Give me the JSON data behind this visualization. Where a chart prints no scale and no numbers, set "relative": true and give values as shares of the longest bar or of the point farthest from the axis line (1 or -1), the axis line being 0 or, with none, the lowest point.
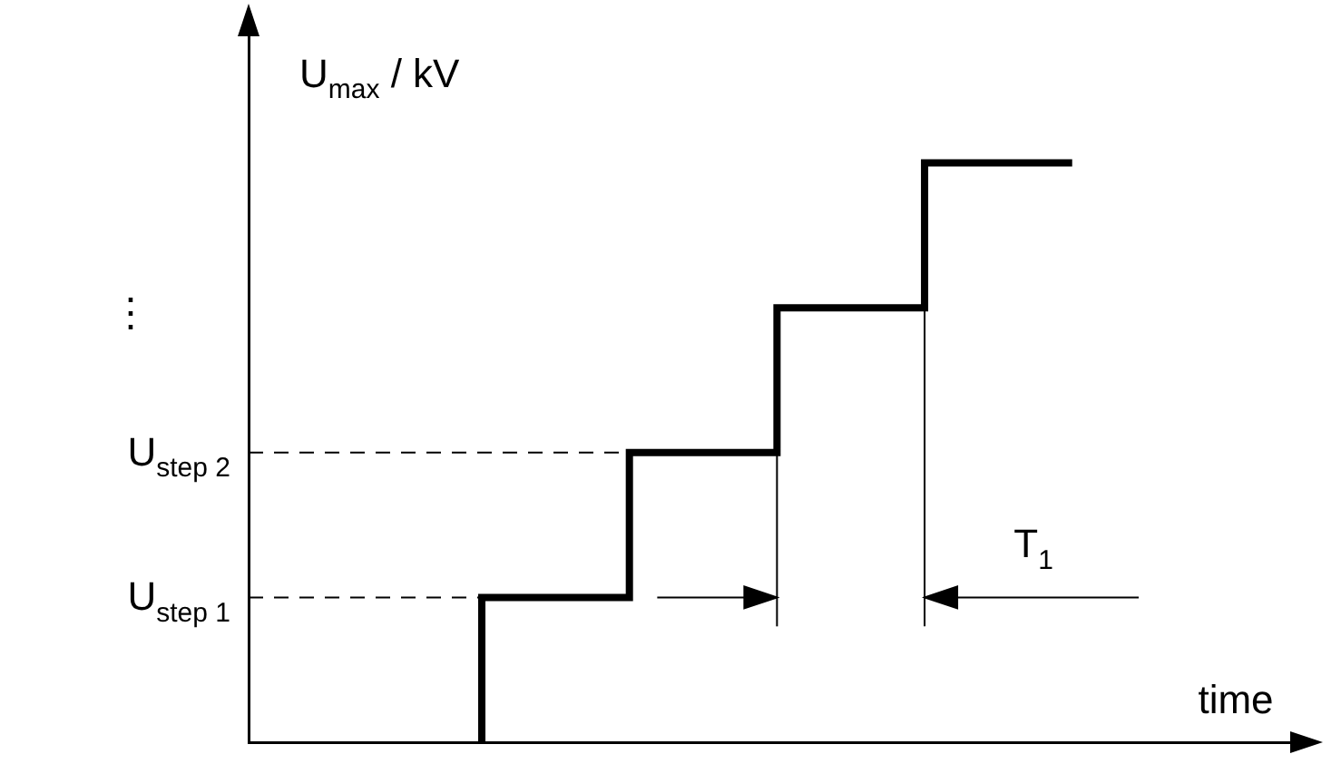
{
  "chart_data": {
    "type": "step",
    "relative": true,
    "ylabel": "U$_{max}$ / kV",
    "xlabel": "time",
    "categories": [
      null,
      null,
      null,
      null,
      null
    ],
    "series": [
      {
        "color": "#000000",
        "values": [
          0,
          0.25,
          0.5,
          0.75,
          1
        ]
      }
    ],
    "ref_lines": [
      {
        "axis": "y",
        "value": 0.25,
        "label": "U$_{step 1}$",
        "line_style": "dashed",
        "color": "#000000"
      },
      {
        "axis": "y",
        "value": 0.5,
        "label": "U$_{step 2}$",
        "line_style": "dashed",
        "color": "#000000"
      }
    ],
    "annotations": [
      "⋮",
      "T$_{1}$"
    ],
    "marker": "none",
    "grid": false
  }
}
